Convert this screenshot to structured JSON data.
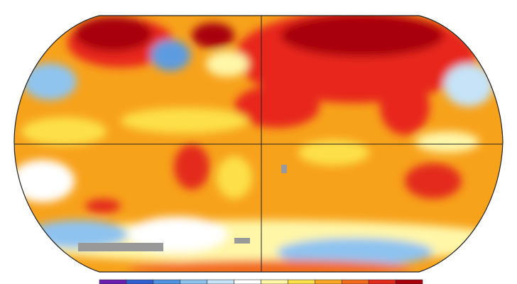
{
  "map": {
    "colorbar": [
      "#6a1fb0",
      "#2f5fd0",
      "#4f93e0",
      "#8ec3f0",
      "#c6e3f7",
      "#ffffff",
      "#fff6a8",
      "#fde04a",
      "#f9a825",
      "#f26b1d",
      "#e32a1c",
      "#a8000f"
    ]
  }
}
